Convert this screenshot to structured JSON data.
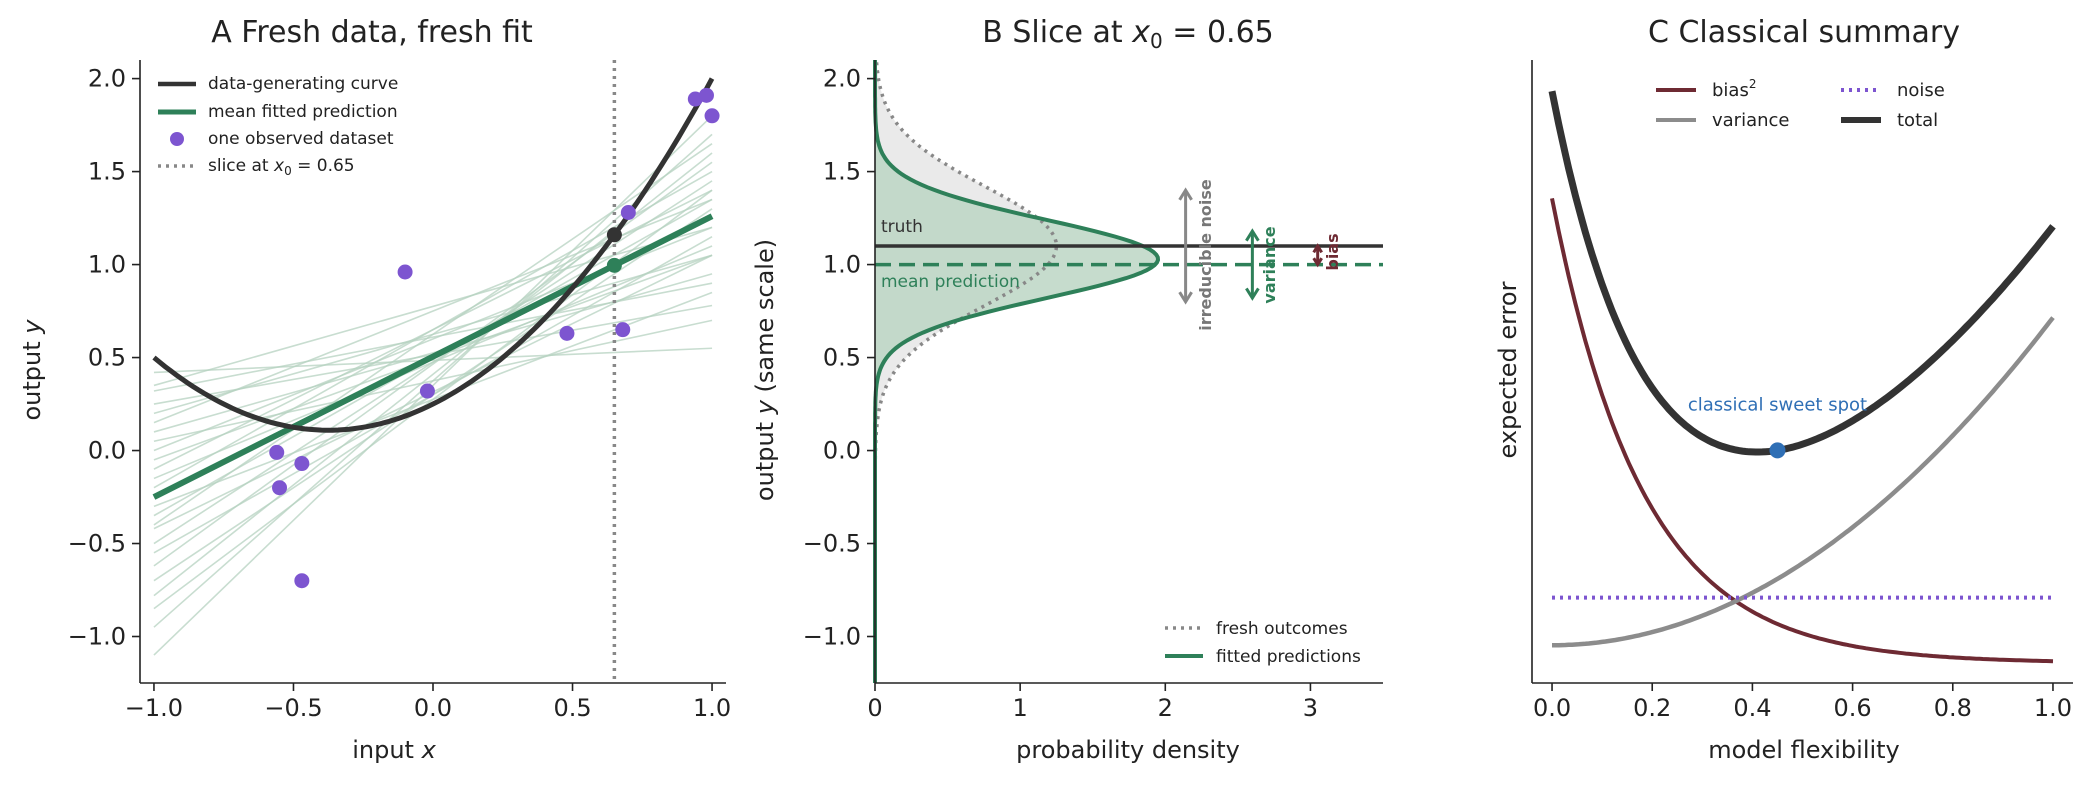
{
  "colors": {
    "truth": "#333333",
    "fit": "#2e8059",
    "fit_light": "#b5d2c0",
    "fit_shade": "#bcd6c4",
    "points": "#7d55d0",
    "slice": "#888888",
    "fresh_shade": "#e8e8e8",
    "bias": "#6e2a33",
    "variance": "#8c8c8c",
    "noise": "#7d55d0",
    "total": "#333333",
    "sweet": "#2f6fb5"
  },
  "chart_data": [
    {
      "panel": "A",
      "type": "scatter",
      "title": "A  Fresh data, fresh fit",
      "xlabel": "input ",
      "xlabel_var": "x",
      "ylabel": "output ",
      "ylabel_var": "y",
      "xlim": [
        -1.05,
        1.05
      ],
      "ylim": [
        -1.25,
        2.1
      ],
      "xticks": [
        -1.0,
        -0.5,
        0.0,
        0.5,
        1.0
      ],
      "xtick_labels": [
        "−1.0",
        "−0.5",
        "0.0",
        "0.5",
        "1.0"
      ],
      "yticks": [
        -1.0,
        -0.5,
        0.0,
        0.5,
        1.0,
        1.5,
        2.0
      ],
      "ytick_labels": [
        "−1.0",
        "−0.5",
        "0.0",
        "0.5",
        "1.0",
        "1.5",
        "2.0"
      ],
      "legend": [
        "data-generating curve",
        "mean fitted prediction",
        "one observed dataset",
        "slice at "
      ],
      "legend_slice_math": "x",
      "legend_slice_sub": "0",
      "legend_slice_value": " = 0.65",
      "truth_curve": {
        "a": 1.0,
        "b": 0.75,
        "c": 0.25
      },
      "mean_fit": {
        "intercept": 0.505,
        "slope": 0.755
      },
      "slice_x": 0.65,
      "points": [
        {
          "x": -0.56,
          "y": -0.01
        },
        {
          "x": -0.55,
          "y": -0.2
        },
        {
          "x": -0.47,
          "y": -0.07
        },
        {
          "x": -0.47,
          "y": -0.7
        },
        {
          "x": -0.1,
          "y": 0.96
        },
        {
          "x": -0.02,
          "y": 0.32
        },
        {
          "x": 0.48,
          "y": 0.63
        },
        {
          "x": 0.68,
          "y": 0.65
        },
        {
          "x": 0.7,
          "y": 1.28
        },
        {
          "x": 0.94,
          "y": 1.89
        },
        {
          "x": 0.98,
          "y": 1.91
        },
        {
          "x": 1.0,
          "y": 1.8
        }
      ],
      "fitted_lines": [
        {
          "y_at_minus1": 0.42,
          "y_at_1": 0.55
        },
        {
          "y_at_minus1": 0.25,
          "y_at_1": 0.78
        },
        {
          "y_at_minus1": 0.1,
          "y_at_1": 0.95
        },
        {
          "y_at_minus1": -0.05,
          "y_at_1": 1.05
        },
        {
          "y_at_minus1": -0.15,
          "y_at_1": 1.1
        },
        {
          "y_at_minus1": -0.25,
          "y_at_1": 1.25
        },
        {
          "y_at_minus1": -0.35,
          "y_at_1": 1.35
        },
        {
          "y_at_minus1": -0.5,
          "y_at_1": 1.45
        },
        {
          "y_at_minus1": -0.62,
          "y_at_1": 1.55
        },
        {
          "y_at_minus1": -0.78,
          "y_at_1": 1.6
        },
        {
          "y_at_minus1": -0.95,
          "y_at_1": 1.7
        },
        {
          "y_at_minus1": -1.1,
          "y_at_1": 1.8
        },
        {
          "y_at_minus1": 0.32,
          "y_at_1": 0.9
        },
        {
          "y_at_minus1": 0.0,
          "y_at_1": 1.2
        },
        {
          "y_at_minus1": -0.42,
          "y_at_1": 1.05
        },
        {
          "y_at_minus1": 0.15,
          "y_at_1": 1.35
        },
        {
          "y_at_minus1": -0.2,
          "y_at_1": 1.5
        },
        {
          "y_at_minus1": -0.7,
          "y_at_1": 1.3
        },
        {
          "y_at_minus1": 0.05,
          "y_at_1": 0.7
        },
        {
          "y_at_minus1": -0.3,
          "y_at_1": 0.85
        },
        {
          "y_at_minus1": -0.55,
          "y_at_1": 1.15
        },
        {
          "y_at_minus1": 0.2,
          "y_at_1": 1.05
        },
        {
          "y_at_minus1": -0.1,
          "y_at_1": 1.4
        },
        {
          "y_at_minus1": -0.85,
          "y_at_1": 1.4
        },
        {
          "y_at_minus1": 0.35,
          "y_at_1": 1.2
        },
        {
          "y_at_minus1": -0.4,
          "y_at_1": 1.65
        }
      ]
    },
    {
      "panel": "B",
      "type": "area",
      "title_prefix": "B  Slice at ",
      "title_math": "x",
      "title_sub": "0",
      "title_value": " = 0.65",
      "xlabel": "probability density",
      "ylabel": "output ",
      "ylabel_var": "y",
      "ylabel_suffix": " (same scale)",
      "xlim": [
        0,
        3.5
      ],
      "ylim": [
        -1.25,
        2.1
      ],
      "xticks": [
        0,
        1,
        2,
        3
      ],
      "xtick_labels": [
        "0",
        "1",
        "2",
        "3"
      ],
      "yticks": [
        -1.0,
        -0.5,
        0.0,
        0.5,
        1.0,
        1.5,
        2.0
      ],
      "ytick_labels": [
        "−1.0",
        "−0.5",
        "0.0",
        "0.5",
        "1.0",
        "1.5",
        "2.0"
      ],
      "truth_value": 1.1,
      "mean_prediction": 1.0,
      "fresh_outcomes": {
        "center": 1.1,
        "sd": 0.32,
        "peak": 1.25
      },
      "fitted_predictions": {
        "center": 1.03,
        "sd": 0.21,
        "peak": 1.95
      },
      "legend": [
        "fresh outcomes",
        "fitted predictions"
      ],
      "annotations": {
        "truth": "truth",
        "mean_prediction": "mean prediction",
        "irreducible_noise": "irreducible noise",
        "variance": "variance",
        "bias": "bias"
      },
      "noise_arrow": {
        "x": 2.14,
        "y_low": 0.8,
        "y_high": 1.4
      },
      "variance_arrow": {
        "x": 2.6,
        "y_low": 0.82,
        "y_high": 1.18
      },
      "bias_arrow": {
        "x": 3.05,
        "y_low": 1.0,
        "y_high": 1.1
      }
    },
    {
      "panel": "C",
      "type": "line",
      "title": "C  Classical summary",
      "xlabel": "model flexibility",
      "ylabel": "expected error",
      "xlim": [
        -0.04,
        1.04
      ],
      "ylim": [
        0,
        1
      ],
      "xticks": [
        0.0,
        0.2,
        0.4,
        0.6,
        0.8,
        1.0
      ],
      "xtick_labels": [
        "0.0",
        "0.2",
        "0.4",
        "0.6",
        "0.8",
        "1.0"
      ],
      "y_ticks_shown": false,
      "series": [
        {
          "name": "bias",
          "superscript": "2",
          "curve": "bias"
        },
        {
          "name": "variance",
          "curve": "variance"
        },
        {
          "name": "noise",
          "curve": "noise"
        },
        {
          "name": "total",
          "curve": "total"
        }
      ],
      "model": {
        "bias_amp": 0.78,
        "bias_decay": 5.5,
        "bias_floor": 0.02,
        "var_base": 0.05,
        "var_amp": 0.55,
        "var_power": 2.0,
        "noise": 0.13
      },
      "sweet_spot": {
        "x": 0.45,
        "label": "classical sweet spot"
      }
    }
  ]
}
